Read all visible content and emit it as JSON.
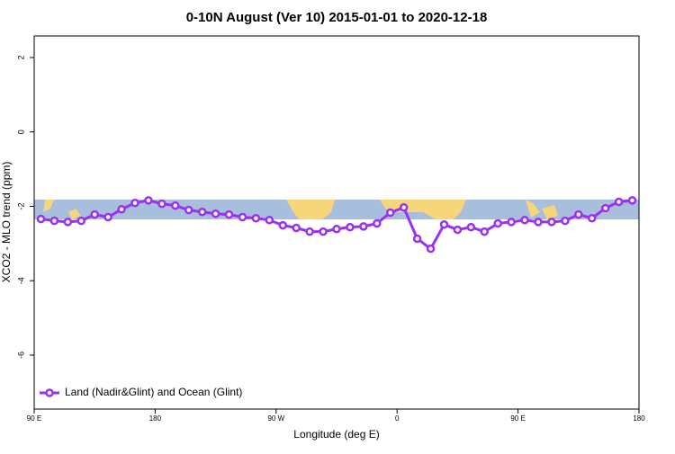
{
  "chart_data": {
    "type": "line",
    "title": "0-10N August (Ver 10)   2015-01-01 to 2020-12-18",
    "x_label": "Longitude (deg E)",
    "y_label": "XCO2 - MLO trend (ppm)",
    "x": [
      95,
      105,
      115,
      125,
      135,
      145,
      155,
      165,
      175,
      185,
      195,
      205,
      215,
      225,
      235,
      245,
      255,
      265,
      275,
      285,
      295,
      305,
      315,
      325,
      335,
      345,
      355,
      365,
      375,
      385,
      395,
      405,
      415,
      425,
      435,
      445,
      455,
      465,
      475,
      485,
      495,
      505,
      515,
      525,
      535
    ],
    "series": [
      {
        "name": "Land (Nadir&Glint) and Ocean (Glint)",
        "color": "#9b30f0",
        "values": [
          -2.34,
          -2.39,
          -2.42,
          -2.39,
          -2.22,
          -2.29,
          -2.08,
          -1.91,
          -1.84,
          -1.93,
          -1.98,
          -2.1,
          -2.15,
          -2.2,
          -2.22,
          -2.29,
          -2.32,
          -2.37,
          -2.51,
          -2.58,
          -2.68,
          -2.68,
          -2.61,
          -2.56,
          -2.54,
          -2.46,
          -2.17,
          -2.03,
          -2.87,
          -3.14,
          -2.49,
          -2.63,
          -2.56,
          -2.68,
          -2.46,
          -2.42,
          -2.37,
          -2.42,
          -2.42,
          -2.39,
          -2.22,
          -2.32,
          -2.05,
          -1.88,
          -1.84
        ]
      }
    ],
    "xlim": [
      90,
      540
    ],
    "xticks": [
      {
        "value": 90,
        "label": "90 E"
      },
      {
        "value": 180,
        "label": "180"
      },
      {
        "value": 270,
        "label": "90 W"
      },
      {
        "value": 360,
        "label": "0"
      },
      {
        "value": 450,
        "label": "90 E"
      },
      {
        "value": 540,
        "label": "180"
      }
    ],
    "ylim": [
      -7.45,
      2.58
    ],
    "yticks": [
      -6,
      -4,
      -2,
      0,
      2
    ],
    "legend": "bottom-left"
  }
}
